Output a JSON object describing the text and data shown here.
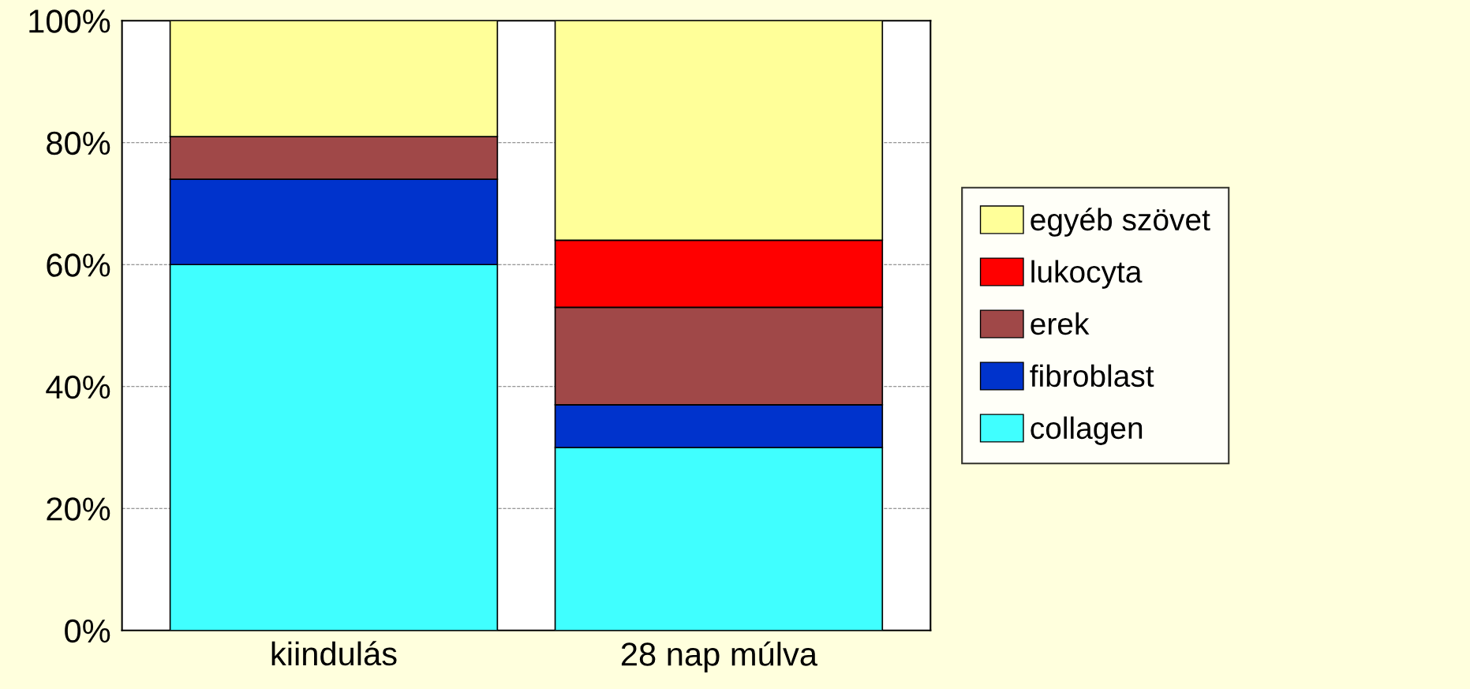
{
  "chart_data": {
    "type": "bar",
    "stacked": true,
    "categories": [
      "kiindulás",
      "28 nap múlva"
    ],
    "series": [
      {
        "name": "collagen",
        "color": "#40ffff",
        "values": [
          60,
          30
        ]
      },
      {
        "name": "fibroblast",
        "color": "#0033cc",
        "values": [
          14,
          7
        ]
      },
      {
        "name": "erek",
        "color": "#a04848",
        "values": [
          7,
          16
        ]
      },
      {
        "name": "lukocyta",
        "color": "#ff0000",
        "values": [
          0,
          11
        ]
      },
      {
        "name": "egyéb szövet",
        "color": "#ffff99",
        "values": [
          19,
          36
        ]
      }
    ],
    "ylim": [
      0,
      100
    ],
    "yticks": [
      {
        "value": 0,
        "label": "0%"
      },
      {
        "value": 20,
        "label": "20%"
      },
      {
        "value": 40,
        "label": "40%"
      },
      {
        "value": 60,
        "label": "60%"
      },
      {
        "value": 80,
        "label": "80%"
      },
      {
        "value": 100,
        "label": "100%"
      }
    ],
    "grid": "y",
    "legend": "right"
  }
}
